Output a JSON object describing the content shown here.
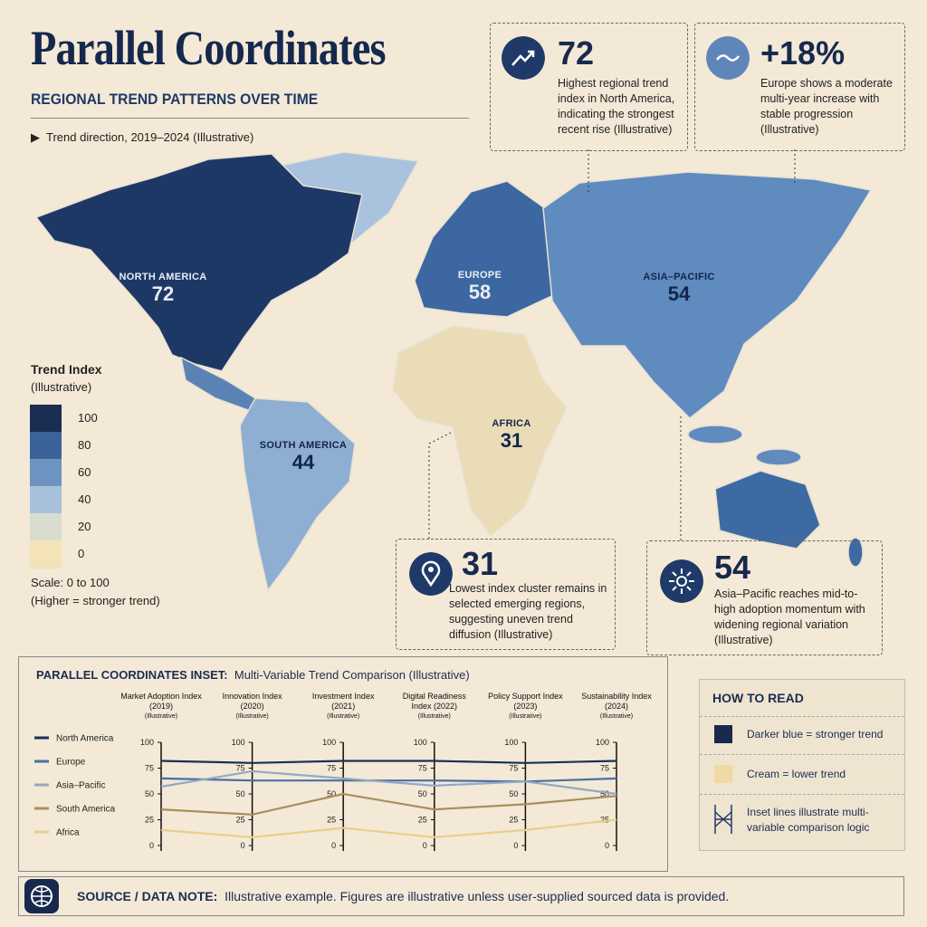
{
  "header": {
    "title": "Parallel Coordinates",
    "subtitle": "REGIONAL TREND PATTERNS OVER TIME",
    "note": "Trend direction, 2019–2024 (Illustrative)"
  },
  "callouts": [
    {
      "value": "72",
      "text": "Highest regional trend index in North America, indicating the strongest recent rise (Illustrative)"
    },
    {
      "value": "+18%",
      "text": "Europe shows a moderate multi-year increase with stable progression (Illustrative)"
    },
    {
      "value": "31",
      "text": "Lowest index cluster remains in selected emerging regions, suggesting uneven trend diffusion (Illustrative)"
    },
    {
      "value": "54",
      "text": "Asia–Pacific reaches mid-to-high adoption momentum with widening regional variation (Illustrative)"
    }
  ],
  "map_regions": [
    {
      "name": "NORTH AMERICA",
      "value": "72"
    },
    {
      "name": "EUROPE",
      "value": "58"
    },
    {
      "name": "ASIA–PACIFIC",
      "value": "54"
    },
    {
      "name": "AFRICA",
      "value": "31"
    },
    {
      "name": "SOUTH AMERICA",
      "value": "44"
    }
  ],
  "legend": {
    "title": "Trend Index",
    "subtitle": "(Illustrative)",
    "ticks": [
      "100",
      "80",
      "60",
      "40",
      "20",
      "0"
    ],
    "colors": [
      "#1a2d52",
      "#3a639a",
      "#6d93c0",
      "#a8c1db",
      "#d9ddd0",
      "#f5e3b8"
    ],
    "scale": "Scale: 0 to 100",
    "note": "(Higher = stronger trend)"
  },
  "chart_data": {
    "type": "parallel",
    "title": "PARALLEL COORDINATES INSET:",
    "subtitle": "Multi-Variable Trend Comparison (Illustrative)",
    "categories": [
      "Market Adoption Index (2019)",
      "Innovation Index (2020)",
      "Investment Index (2021)",
      "Digital Readiness Index (2022)",
      "Policy Support Index (2023)",
      "Sustainability Index (2024)"
    ],
    "axis_note": "(Illustrative)",
    "ylim": [
      0,
      100
    ],
    "yticks": [
      0,
      25,
      50,
      75,
      100
    ],
    "series": [
      {
        "name": "North America",
        "color": "#1b2f55",
        "values": [
          82,
          80,
          82,
          82,
          80,
          82
        ]
      },
      {
        "name": "Europe",
        "color": "#4a6fa5",
        "values": [
          65,
          63,
          63,
          63,
          62,
          65
        ]
      },
      {
        "name": "Asia–Pacific",
        "color": "#93a9c4",
        "values": [
          57,
          72,
          65,
          58,
          62,
          50
        ]
      },
      {
        "name": "South America",
        "color": "#a88f5c",
        "values": [
          35,
          30,
          50,
          35,
          40,
          48
        ]
      },
      {
        "name": "Africa",
        "color": "#e8cf8c",
        "values": [
          15,
          8,
          17,
          8,
          15,
          25
        ]
      }
    ]
  },
  "how_to_read": {
    "title": "HOW TO READ",
    "items": [
      "Darker blue = stronger trend",
      "Cream = lower trend",
      "Inset lines illustrate multi-variable comparison logic"
    ]
  },
  "footer": {
    "label": "SOURCE / DATA NOTE:",
    "text": "Illustrative example. Figures are illustrative unless user-supplied sourced data is provided."
  }
}
